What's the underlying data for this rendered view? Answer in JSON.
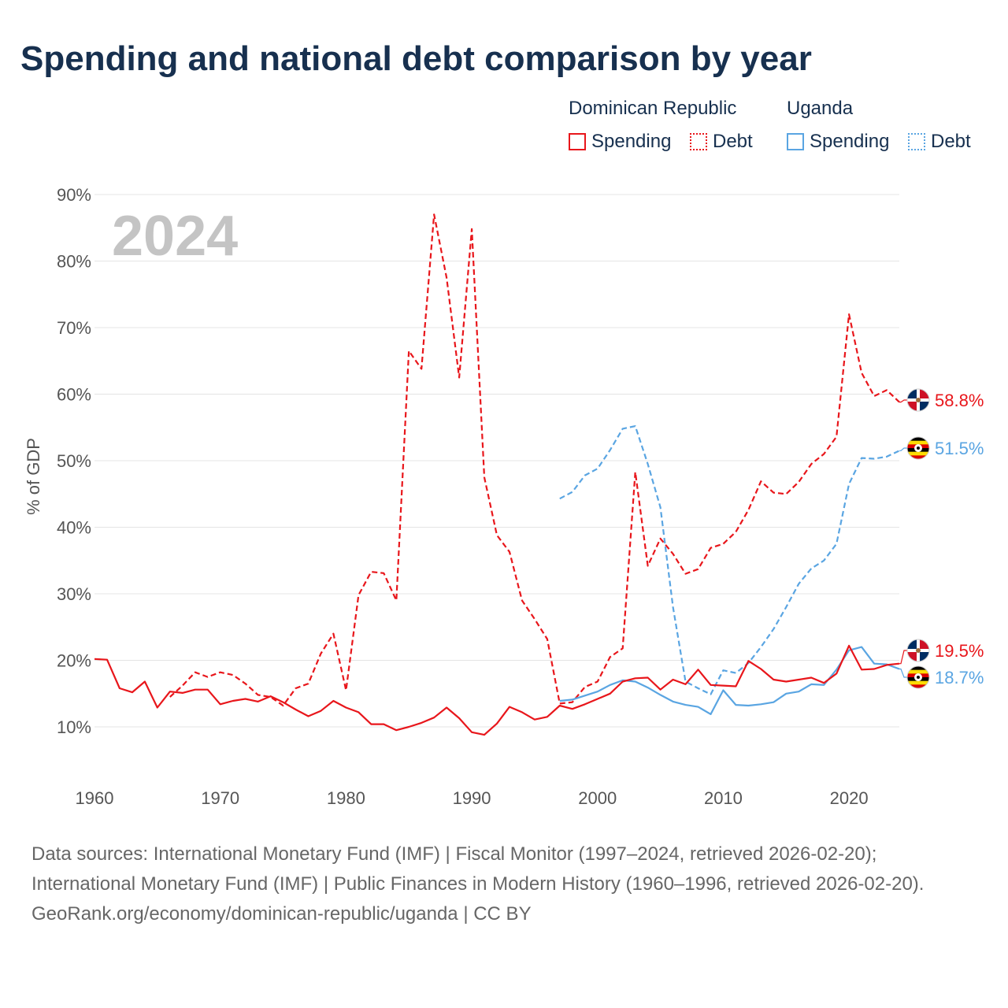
{
  "title": "Spending and national debt comparison by year",
  "legend": {
    "groups": [
      {
        "country": "Dominican Republic",
        "color": "#e8161b",
        "items": [
          {
            "label": "Spending",
            "style": "solid"
          },
          {
            "label": "Debt",
            "style": "dotted"
          }
        ]
      },
      {
        "country": "Uganda",
        "color": "#5aa5e2",
        "items": [
          {
            "label": "Spending",
            "style": "solid"
          },
          {
            "label": "Debt",
            "style": "dotted"
          }
        ]
      }
    ]
  },
  "footer": {
    "sources": "Data sources: International Monetary Fund (IMF) | Fiscal Monitor (1997–2024, retrieved 2026-02-20); International Monetary Fund (IMF) | Public Finances in Modern History (1960–1996, retrieved 2026-02-20).",
    "credit": "GeoRank.org/economy/dominican-republic/uganda | CC BY"
  },
  "chart_data": {
    "type": "line",
    "title": "Spending and national debt comparison by year",
    "year_label": "2024",
    "ylabel": "% of GDP",
    "xlabel": "",
    "xlim": [
      1960,
      2024
    ],
    "ylim": [
      3,
      90
    ],
    "x_ticks": [
      1960,
      1970,
      1980,
      1990,
      2000,
      2010,
      2020
    ],
    "y_ticks": [
      10,
      20,
      30,
      40,
      50,
      60,
      70,
      80,
      90
    ],
    "grid": true,
    "series": [
      {
        "name": "Dominican Republic Debt",
        "color": "#e8161b",
        "dash": true,
        "end_label": "58.8%",
        "flag": "dominican-republic",
        "x": [
          1966,
          1967,
          1968,
          1969,
          1970,
          1971,
          1972,
          1973,
          1974,
          1975,
          1976,
          1977,
          1978,
          1979,
          1980,
          1981,
          1982,
          1983,
          1984,
          1985,
          1986,
          1987,
          1988,
          1989,
          1990,
          1991,
          1992,
          1993,
          1994,
          1995,
          1996,
          1997,
          1998,
          1999,
          2000,
          2001,
          2002,
          2003,
          2004,
          2005,
          2006,
          2007,
          2008,
          2009,
          2010,
          2011,
          2012,
          2013,
          2014,
          2015,
          2016,
          2017,
          2018,
          2019,
          2020,
          2021,
          2022,
          2023,
          2024
        ],
        "y": [
          14.5,
          16.2,
          18.2,
          17.5,
          18.2,
          17.8,
          16.5,
          14.8,
          14.5,
          13.2,
          15.8,
          16.5,
          21.0,
          24.0,
          15.5,
          29.8,
          33.3,
          33.1,
          29.0,
          66.5,
          63.8,
          87.0,
          77.5,
          62.5,
          84.8,
          47.5,
          38.8,
          36.3,
          29.0,
          26.2,
          23.2,
          13.5,
          13.7,
          16.0,
          16.8,
          20.5,
          21.8,
          48.3,
          34.2,
          38.3,
          36.0,
          33.0,
          33.7,
          36.9,
          37.5,
          39.3,
          42.6,
          46.9,
          45.2,
          45.0,
          46.8,
          49.5,
          51.0,
          53.6,
          72.0,
          63.2,
          59.7,
          60.6,
          58.8
        ]
      },
      {
        "name": "Dominican Republic Spending",
        "color": "#e8161b",
        "dash": false,
        "end_label": "19.5%",
        "flag": "dominican-republic",
        "x": [
          1960,
          1961,
          1962,
          1963,
          1964,
          1965,
          1966,
          1967,
          1968,
          1969,
          1970,
          1971,
          1972,
          1973,
          1974,
          1975,
          1976,
          1977,
          1978,
          1979,
          1980,
          1981,
          1982,
          1983,
          1984,
          1985,
          1986,
          1987,
          1988,
          1989,
          1990,
          1991,
          1992,
          1993,
          1994,
          1995,
          1996,
          1997,
          1998,
          1999,
          2000,
          2001,
          2002,
          2003,
          2004,
          2005,
          2006,
          2007,
          2008,
          2009,
          2010,
          2011,
          2012,
          2013,
          2014,
          2015,
          2016,
          2017,
          2018,
          2019,
          2020,
          2021,
          2022,
          2023,
          2024
        ],
        "y": [
          20.2,
          20.1,
          15.8,
          15.2,
          16.8,
          12.9,
          15.3,
          15.1,
          15.6,
          15.6,
          13.4,
          13.9,
          14.2,
          13.8,
          14.6,
          13.7,
          12.6,
          11.6,
          12.4,
          13.9,
          12.9,
          12.2,
          10.4,
          10.4,
          9.5,
          10.0,
          10.6,
          11.4,
          12.9,
          11.3,
          9.2,
          8.8,
          10.5,
          13.0,
          12.2,
          11.1,
          11.5,
          13.2,
          12.7,
          13.4,
          14.2,
          15.0,
          16.8,
          17.3,
          17.4,
          15.6,
          17.1,
          16.4,
          18.6,
          16.3,
          16.2,
          16.1,
          19.9,
          18.7,
          17.1,
          16.8,
          17.1,
          17.4,
          16.6,
          18.0,
          22.2,
          18.6,
          18.7,
          19.3,
          19.5
        ]
      },
      {
        "name": "Uganda Debt",
        "color": "#5aa5e2",
        "dash": true,
        "end_label": "51.5%",
        "flag": "uganda",
        "x": [
          1997,
          1998,
          1999,
          2000,
          2001,
          2002,
          2003,
          2004,
          2005,
          2006,
          2007,
          2008,
          2009,
          2010,
          2011,
          2012,
          2013,
          2014,
          2015,
          2016,
          2017,
          2018,
          2019,
          2020,
          2021,
          2022,
          2023,
          2024
        ],
        "y": [
          44.3,
          45.3,
          47.8,
          48.8,
          51.6,
          54.8,
          55.2,
          49.5,
          43.0,
          28.0,
          16.8,
          15.8,
          14.9,
          18.5,
          18.1,
          19.6,
          22.0,
          24.7,
          28.0,
          31.5,
          33.8,
          35.0,
          37.5,
          46.5,
          50.4,
          50.3,
          50.6,
          51.5
        ]
      },
      {
        "name": "Uganda Spending",
        "color": "#5aa5e2",
        "dash": false,
        "end_label": "18.7%",
        "flag": "uganda",
        "x": [
          1997,
          1998,
          1999,
          2000,
          2001,
          2002,
          2003,
          2004,
          2005,
          2006,
          2007,
          2008,
          2009,
          2010,
          2011,
          2012,
          2013,
          2014,
          2015,
          2016,
          2017,
          2018,
          2019,
          2020,
          2021,
          2022,
          2023,
          2024
        ],
        "y": [
          13.9,
          14.1,
          14.7,
          15.3,
          16.3,
          17.0,
          16.8,
          15.9,
          14.8,
          13.8,
          13.3,
          13.0,
          11.9,
          15.5,
          13.3,
          13.2,
          13.4,
          13.7,
          15.0,
          15.3,
          16.4,
          16.3,
          18.6,
          21.5,
          22.0,
          19.5,
          19.4,
          18.7
        ]
      }
    ]
  }
}
